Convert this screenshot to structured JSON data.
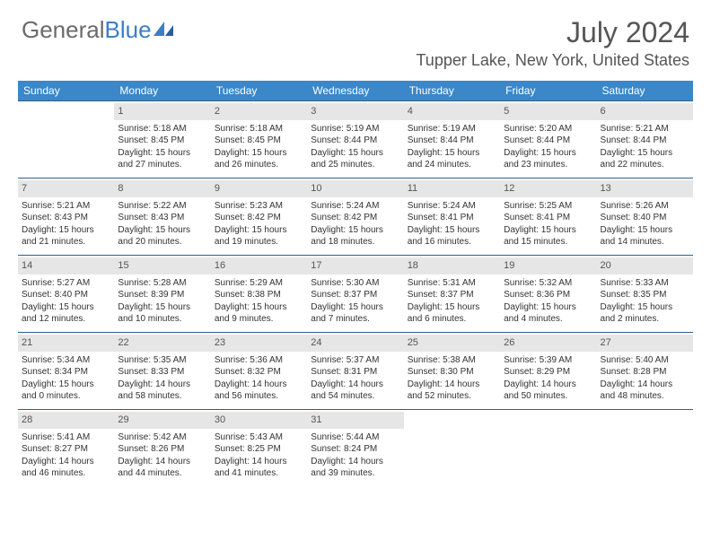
{
  "logo": {
    "text1": "General",
    "text2": "Blue"
  },
  "title": "July 2024",
  "location": "Tupper Lake, New York, United States",
  "brand_color": "#3b87c8",
  "header_bg": "#3b87c8",
  "daynum_bg": "#e6e6e6",
  "row_border": "#2f5f8f",
  "text_color": "#333333",
  "day_headers": [
    "Sunday",
    "Monday",
    "Tuesday",
    "Wednesday",
    "Thursday",
    "Friday",
    "Saturday"
  ],
  "weeks": [
    [
      {
        "n": "",
        "sr": "",
        "ss": "",
        "dl": ""
      },
      {
        "n": "1",
        "sr": "Sunrise: 5:18 AM",
        "ss": "Sunset: 8:45 PM",
        "dl": "Daylight: 15 hours and 27 minutes."
      },
      {
        "n": "2",
        "sr": "Sunrise: 5:18 AM",
        "ss": "Sunset: 8:45 PM",
        "dl": "Daylight: 15 hours and 26 minutes."
      },
      {
        "n": "3",
        "sr": "Sunrise: 5:19 AM",
        "ss": "Sunset: 8:44 PM",
        "dl": "Daylight: 15 hours and 25 minutes."
      },
      {
        "n": "4",
        "sr": "Sunrise: 5:19 AM",
        "ss": "Sunset: 8:44 PM",
        "dl": "Daylight: 15 hours and 24 minutes."
      },
      {
        "n": "5",
        "sr": "Sunrise: 5:20 AM",
        "ss": "Sunset: 8:44 PM",
        "dl": "Daylight: 15 hours and 23 minutes."
      },
      {
        "n": "6",
        "sr": "Sunrise: 5:21 AM",
        "ss": "Sunset: 8:44 PM",
        "dl": "Daylight: 15 hours and 22 minutes."
      }
    ],
    [
      {
        "n": "7",
        "sr": "Sunrise: 5:21 AM",
        "ss": "Sunset: 8:43 PM",
        "dl": "Daylight: 15 hours and 21 minutes."
      },
      {
        "n": "8",
        "sr": "Sunrise: 5:22 AM",
        "ss": "Sunset: 8:43 PM",
        "dl": "Daylight: 15 hours and 20 minutes."
      },
      {
        "n": "9",
        "sr": "Sunrise: 5:23 AM",
        "ss": "Sunset: 8:42 PM",
        "dl": "Daylight: 15 hours and 19 minutes."
      },
      {
        "n": "10",
        "sr": "Sunrise: 5:24 AM",
        "ss": "Sunset: 8:42 PM",
        "dl": "Daylight: 15 hours and 18 minutes."
      },
      {
        "n": "11",
        "sr": "Sunrise: 5:24 AM",
        "ss": "Sunset: 8:41 PM",
        "dl": "Daylight: 15 hours and 16 minutes."
      },
      {
        "n": "12",
        "sr": "Sunrise: 5:25 AM",
        "ss": "Sunset: 8:41 PM",
        "dl": "Daylight: 15 hours and 15 minutes."
      },
      {
        "n": "13",
        "sr": "Sunrise: 5:26 AM",
        "ss": "Sunset: 8:40 PM",
        "dl": "Daylight: 15 hours and 14 minutes."
      }
    ],
    [
      {
        "n": "14",
        "sr": "Sunrise: 5:27 AM",
        "ss": "Sunset: 8:40 PM",
        "dl": "Daylight: 15 hours and 12 minutes."
      },
      {
        "n": "15",
        "sr": "Sunrise: 5:28 AM",
        "ss": "Sunset: 8:39 PM",
        "dl": "Daylight: 15 hours and 10 minutes."
      },
      {
        "n": "16",
        "sr": "Sunrise: 5:29 AM",
        "ss": "Sunset: 8:38 PM",
        "dl": "Daylight: 15 hours and 9 minutes."
      },
      {
        "n": "17",
        "sr": "Sunrise: 5:30 AM",
        "ss": "Sunset: 8:37 PM",
        "dl": "Daylight: 15 hours and 7 minutes."
      },
      {
        "n": "18",
        "sr": "Sunrise: 5:31 AM",
        "ss": "Sunset: 8:37 PM",
        "dl": "Daylight: 15 hours and 6 minutes."
      },
      {
        "n": "19",
        "sr": "Sunrise: 5:32 AM",
        "ss": "Sunset: 8:36 PM",
        "dl": "Daylight: 15 hours and 4 minutes."
      },
      {
        "n": "20",
        "sr": "Sunrise: 5:33 AM",
        "ss": "Sunset: 8:35 PM",
        "dl": "Daylight: 15 hours and 2 minutes."
      }
    ],
    [
      {
        "n": "21",
        "sr": "Sunrise: 5:34 AM",
        "ss": "Sunset: 8:34 PM",
        "dl": "Daylight: 15 hours and 0 minutes."
      },
      {
        "n": "22",
        "sr": "Sunrise: 5:35 AM",
        "ss": "Sunset: 8:33 PM",
        "dl": "Daylight: 14 hours and 58 minutes."
      },
      {
        "n": "23",
        "sr": "Sunrise: 5:36 AM",
        "ss": "Sunset: 8:32 PM",
        "dl": "Daylight: 14 hours and 56 minutes."
      },
      {
        "n": "24",
        "sr": "Sunrise: 5:37 AM",
        "ss": "Sunset: 8:31 PM",
        "dl": "Daylight: 14 hours and 54 minutes."
      },
      {
        "n": "25",
        "sr": "Sunrise: 5:38 AM",
        "ss": "Sunset: 8:30 PM",
        "dl": "Daylight: 14 hours and 52 minutes."
      },
      {
        "n": "26",
        "sr": "Sunrise: 5:39 AM",
        "ss": "Sunset: 8:29 PM",
        "dl": "Daylight: 14 hours and 50 minutes."
      },
      {
        "n": "27",
        "sr": "Sunrise: 5:40 AM",
        "ss": "Sunset: 8:28 PM",
        "dl": "Daylight: 14 hours and 48 minutes."
      }
    ],
    [
      {
        "n": "28",
        "sr": "Sunrise: 5:41 AM",
        "ss": "Sunset: 8:27 PM",
        "dl": "Daylight: 14 hours and 46 minutes."
      },
      {
        "n": "29",
        "sr": "Sunrise: 5:42 AM",
        "ss": "Sunset: 8:26 PM",
        "dl": "Daylight: 14 hours and 44 minutes."
      },
      {
        "n": "30",
        "sr": "Sunrise: 5:43 AM",
        "ss": "Sunset: 8:25 PM",
        "dl": "Daylight: 14 hours and 41 minutes."
      },
      {
        "n": "31",
        "sr": "Sunrise: 5:44 AM",
        "ss": "Sunset: 8:24 PM",
        "dl": "Daylight: 14 hours and 39 minutes."
      },
      {
        "n": "",
        "sr": "",
        "ss": "",
        "dl": ""
      },
      {
        "n": "",
        "sr": "",
        "ss": "",
        "dl": ""
      },
      {
        "n": "",
        "sr": "",
        "ss": "",
        "dl": ""
      }
    ]
  ]
}
